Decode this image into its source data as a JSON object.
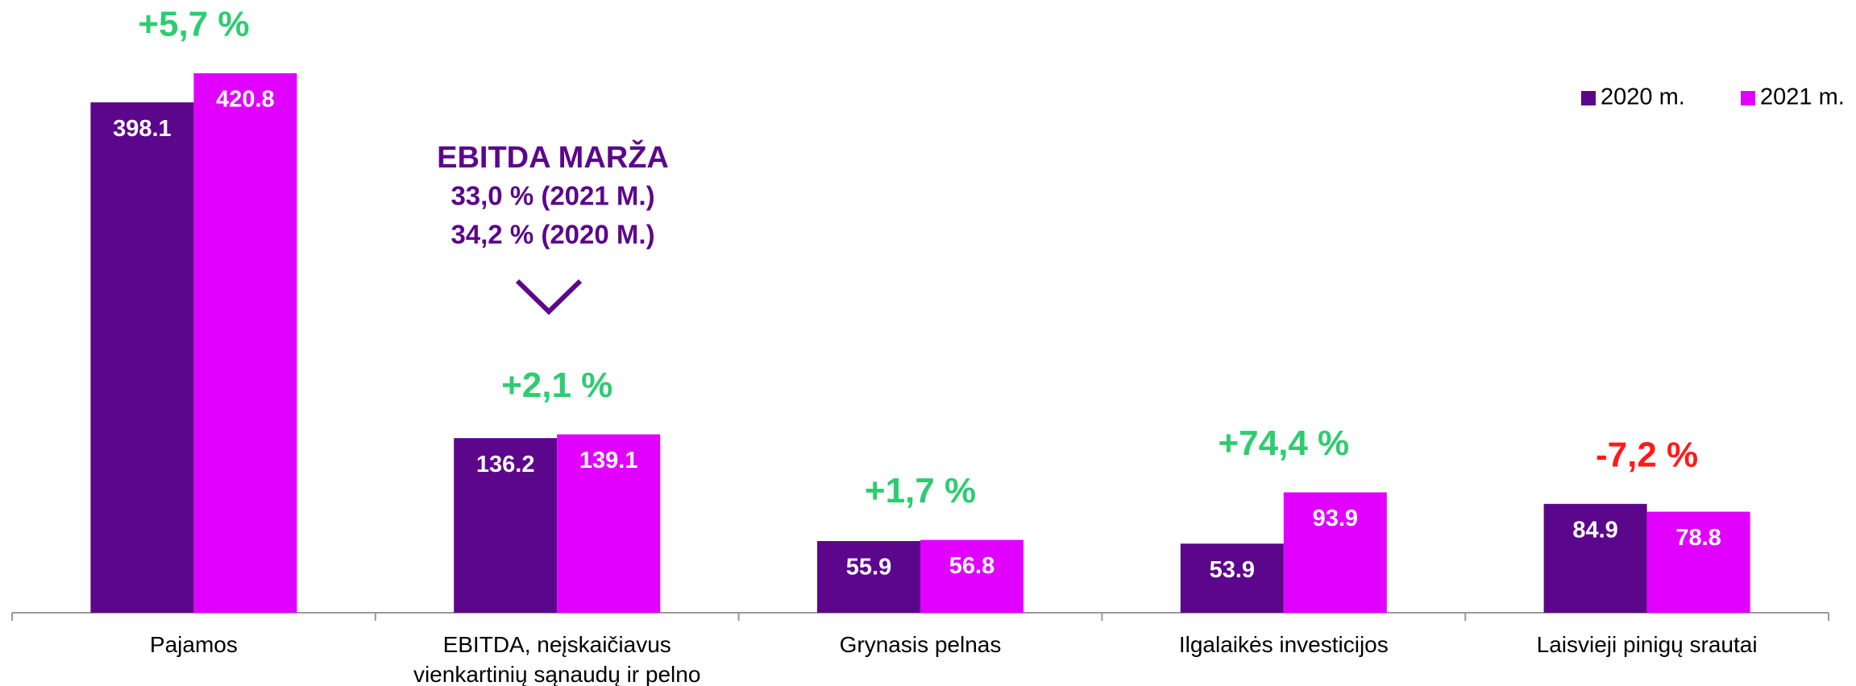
{
  "chart_data": {
    "type": "bar",
    "categories": [
      "Pajamos",
      "EBITDA, neįskaičiavus vienkartinių sąnaudų ir pelno",
      "Grynasis pelnas",
      "Ilgalaikės investicijos",
      "Laisvieji pinigų srautai"
    ],
    "series": [
      {
        "name": "2020 m.",
        "color": "#5c068c",
        "values": [
          398.1,
          136.2,
          55.9,
          53.9,
          84.9
        ]
      },
      {
        "name": "2021 m.",
        "color": "#e100ff",
        "values": [
          420.8,
          139.1,
          56.8,
          93.9,
          78.8
        ]
      }
    ],
    "change_labels": [
      {
        "text": "+5,7 %",
        "color": "#2ecc71"
      },
      {
        "text": "+2,1 %",
        "color": "#2ecc71"
      },
      {
        "text": "+1,7 %",
        "color": "#2ecc71"
      },
      {
        "text": "+74,4 %",
        "color": "#2ecc71"
      },
      {
        "text": "-7,2 %",
        "color": "#ff1a1a"
      }
    ],
    "callout": {
      "title": "EBITDA MARŽA",
      "lines": [
        "33,0 % (2021 M.)",
        "34,2 % (2020 M.)"
      ],
      "color": "#5c068c"
    },
    "legend": "top-right"
  }
}
